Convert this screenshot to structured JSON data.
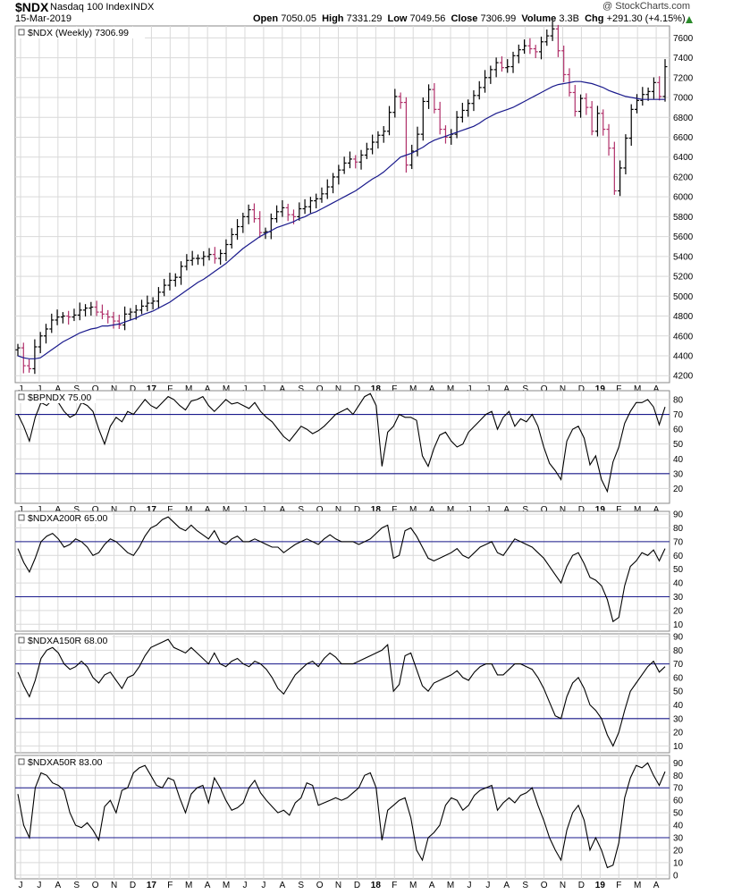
{
  "header": {
    "symbol": "$NDX",
    "name": "Nasdaq 100 Index",
    "exchange": "INDX",
    "date": "15-Mar-2019",
    "copyright": "@ StockCharts.com",
    "open_label": "Open",
    "open": "7050.05",
    "high_label": "High",
    "high": "7331.29",
    "low_label": "Low",
    "low": "7049.56",
    "close_label": "Close",
    "close": "7306.99",
    "volume_label": "Volume",
    "volume": "3.3B",
    "chg_label": "Chg",
    "chg": "+291.30 (+4.15%)"
  },
  "x_axis_labels": [
    {
      "label": "J",
      "bold": false
    },
    {
      "label": "J",
      "bold": false
    },
    {
      "label": "A",
      "bold": false
    },
    {
      "label": "S",
      "bold": false
    },
    {
      "label": "O",
      "bold": false
    },
    {
      "label": "N",
      "bold": false
    },
    {
      "label": "D",
      "bold": false
    },
    {
      "label": "17",
      "bold": true
    },
    {
      "label": "F",
      "bold": false
    },
    {
      "label": "M",
      "bold": false
    },
    {
      "label": "A",
      "bold": false
    },
    {
      "label": "M",
      "bold": false
    },
    {
      "label": "J",
      "bold": false
    },
    {
      "label": "J",
      "bold": false
    },
    {
      "label": "A",
      "bold": false
    },
    {
      "label": "S",
      "bold": false
    },
    {
      "label": "O",
      "bold": false
    },
    {
      "label": "N",
      "bold": false
    },
    {
      "label": "D",
      "bold": false
    },
    {
      "label": "18",
      "bold": true
    },
    {
      "label": "F",
      "bold": false
    },
    {
      "label": "M",
      "bold": false
    },
    {
      "label": "A",
      "bold": false
    },
    {
      "label": "M",
      "bold": false
    },
    {
      "label": "J",
      "bold": false
    },
    {
      "label": "J",
      "bold": false
    },
    {
      "label": "A",
      "bold": false
    },
    {
      "label": "S",
      "bold": false
    },
    {
      "label": "O",
      "bold": false
    },
    {
      "label": "N",
      "bold": false
    },
    {
      "label": "D",
      "bold": false
    },
    {
      "label": "19",
      "bold": true
    },
    {
      "label": "F",
      "bold": false
    },
    {
      "label": "M",
      "bold": false
    },
    {
      "label": "A",
      "bold": false
    }
  ],
  "colors": {
    "price": "#000000",
    "ma": "#1a1a8c",
    "down_bar": "#b0306a",
    "ref_line": "#1a1a8c",
    "grid": "#d9d9d9"
  },
  "chart_data": [
    {
      "type": "ohlc",
      "label": "$NDX (Weekly) 7306.99",
      "yticks": [
        4200,
        4400,
        4600,
        4800,
        5000,
        5200,
        5400,
        5600,
        5800,
        6000,
        6200,
        6400,
        6600,
        6800,
        7000,
        7200,
        7400,
        7600
      ],
      "ylim": [
        4130,
        7720
      ],
      "series": [
        {
          "name": "Close",
          "values": [
            4480,
            4300,
            4270,
            4490,
            4600,
            4670,
            4760,
            4790,
            4800,
            4790,
            4810,
            4860,
            4880,
            4890,
            4840,
            4820,
            4790,
            4750,
            4710,
            4820,
            4840,
            4860,
            4900,
            4930,
            4950,
            5040,
            5110,
            5160,
            5190,
            5300,
            5360,
            5380,
            5380,
            5400,
            5420,
            5380,
            5430,
            5520,
            5620,
            5700,
            5800,
            5870,
            5780,
            5640,
            5650,
            5780,
            5850,
            5890,
            5820,
            5800,
            5880,
            5900,
            5960,
            5980,
            6030,
            6100,
            6200,
            6270,
            6340,
            6380,
            6350,
            6420,
            6480,
            6550,
            6620,
            6660,
            6850,
            7010,
            6950,
            6320,
            6460,
            6630,
            6960,
            7080,
            6880,
            6680,
            6600,
            6630,
            6800,
            6870,
            6940,
            7020,
            7100,
            7200,
            7280,
            7350,
            7300,
            7310,
            7420,
            7480,
            7520,
            7490,
            7460,
            7560,
            7620,
            7690,
            7470,
            7230,
            7050,
            6860,
            6990,
            6900,
            6660,
            6840,
            6680,
            6490,
            6060,
            6290,
            6590,
            6880,
            6970,
            7030,
            7060,
            7150,
            7010,
            7310
          ]
        },
        {
          "name": "30-week MA",
          "values": [
            4400,
            4380,
            4370,
            4370,
            4380,
            4420,
            4460,
            4500,
            4540,
            4570,
            4600,
            4630,
            4650,
            4670,
            4680,
            4700,
            4700,
            4710,
            4720,
            4740,
            4760,
            4780,
            4810,
            4830,
            4850,
            4880,
            4910,
            4940,
            4980,
            5020,
            5060,
            5100,
            5140,
            5170,
            5210,
            5250,
            5290,
            5330,
            5380,
            5430,
            5480,
            5520,
            5560,
            5600,
            5630,
            5660,
            5690,
            5710,
            5730,
            5750,
            5780,
            5800,
            5830,
            5850,
            5880,
            5910,
            5940,
            5970,
            6000,
            6030,
            6060,
            6100,
            6140,
            6180,
            6210,
            6250,
            6300,
            6350,
            6400,
            6420,
            6440,
            6470,
            6500,
            6540,
            6570,
            6590,
            6610,
            6630,
            6650,
            6670,
            6690,
            6710,
            6740,
            6780,
            6810,
            6840,
            6860,
            6880,
            6900,
            6930,
            6960,
            6990,
            7020,
            7050,
            7080,
            7110,
            7130,
            7140,
            7150,
            7160,
            7160,
            7150,
            7140,
            7120,
            7100,
            7070,
            7050,
            7030,
            7010,
            7000,
            6990,
            6980,
            6980,
            6980,
            6980,
            6980
          ]
        }
      ]
    },
    {
      "type": "line",
      "label": "$BPNDX 75.00",
      "yticks": [
        20,
        30,
        40,
        50,
        60,
        70,
        80
      ],
      "ylim": [
        10,
        86
      ],
      "ref_lines": [
        70,
        30
      ],
      "series": [
        {
          "name": "$BPNDX",
          "values": [
            70,
            62,
            52,
            68,
            78,
            76,
            80,
            78,
            72,
            68,
            70,
            78,
            76,
            72,
            60,
            50,
            62,
            68,
            65,
            72,
            70,
            75,
            80,
            76,
            74,
            78,
            82,
            80,
            76,
            73,
            79,
            80,
            82,
            76,
            72,
            76,
            80,
            77,
            78,
            76,
            74,
            78,
            72,
            68,
            65,
            60,
            55,
            52,
            57,
            62,
            60,
            57,
            59,
            62,
            66,
            70,
            72,
            74,
            70,
            76,
            82,
            84,
            76,
            35,
            58,
            62,
            70,
            68,
            68,
            66,
            42,
            35,
            47,
            56,
            58,
            52,
            48,
            50,
            58,
            62,
            66,
            70,
            72,
            60,
            68,
            72,
            62,
            67,
            65,
            70,
            62,
            48,
            37,
            32,
            26,
            52,
            60,
            62,
            54,
            36,
            42,
            26,
            18,
            38,
            48,
            64,
            72,
            78,
            78,
            80,
            75,
            63,
            75
          ]
        }
      ]
    },
    {
      "type": "line",
      "label": "$NDXA200R 65.00",
      "yticks": [
        10,
        20,
        30,
        40,
        50,
        60,
        70,
        80,
        90
      ],
      "ylim": [
        5,
        92
      ],
      "ref_lines": [
        70,
        30
      ],
      "series": [
        {
          "name": "$NDXA200R",
          "values": [
            65,
            55,
            48,
            58,
            70,
            74,
            76,
            72,
            66,
            68,
            72,
            70,
            66,
            60,
            62,
            68,
            72,
            70,
            66,
            62,
            60,
            66,
            74,
            80,
            82,
            86,
            88,
            84,
            80,
            78,
            82,
            78,
            75,
            72,
            78,
            70,
            68,
            72,
            74,
            70,
            70,
            72,
            70,
            68,
            66,
            66,
            62,
            65,
            68,
            70,
            72,
            70,
            68,
            72,
            75,
            72,
            70,
            70,
            70,
            68,
            70,
            72,
            76,
            80,
            82,
            58,
            60,
            78,
            80,
            74,
            66,
            58,
            56,
            58,
            60,
            62,
            65,
            60,
            58,
            62,
            66,
            68,
            70,
            62,
            60,
            66,
            72,
            70,
            68,
            66,
            62,
            58,
            52,
            46,
            40,
            52,
            60,
            62,
            54,
            44,
            42,
            38,
            28,
            12,
            15,
            38,
            52,
            56,
            62,
            60,
            64,
            56,
            65
          ]
        }
      ]
    },
    {
      "type": "line",
      "label": "$NDXA150R 68.00",
      "yticks": [
        10,
        20,
        30,
        40,
        50,
        60,
        70,
        80,
        90
      ],
      "ylim": [
        5,
        92
      ],
      "ref_lines": [
        70,
        30
      ],
      "series": [
        {
          "name": "$NDXA150R",
          "values": [
            64,
            54,
            46,
            58,
            74,
            80,
            82,
            78,
            70,
            66,
            68,
            72,
            68,
            60,
            56,
            62,
            64,
            58,
            52,
            60,
            62,
            68,
            76,
            82,
            84,
            86,
            88,
            82,
            80,
            78,
            82,
            78,
            74,
            70,
            78,
            70,
            68,
            72,
            74,
            70,
            68,
            72,
            70,
            66,
            60,
            52,
            48,
            55,
            62,
            66,
            70,
            72,
            68,
            74,
            78,
            75,
            70,
            70,
            70,
            72,
            74,
            76,
            78,
            80,
            84,
            50,
            55,
            76,
            78,
            66,
            54,
            50,
            56,
            58,
            60,
            62,
            65,
            60,
            58,
            64,
            68,
            70,
            70,
            62,
            62,
            66,
            70,
            70,
            68,
            66,
            60,
            52,
            42,
            32,
            30,
            46,
            56,
            60,
            52,
            40,
            36,
            30,
            18,
            10,
            20,
            36,
            50,
            56,
            62,
            68,
            72,
            64,
            68
          ]
        }
      ]
    },
    {
      "type": "line",
      "label": "$NDXA50R 83.00",
      "yticks": [
        0,
        10,
        20,
        30,
        40,
        50,
        60,
        70,
        80,
        90
      ],
      "ylim": [
        -3,
        96
      ],
      "ref_lines": [
        70,
        30
      ],
      "series": [
        {
          "name": "$NDXA50R",
          "values": [
            65,
            40,
            30,
            70,
            82,
            80,
            74,
            72,
            68,
            50,
            40,
            38,
            42,
            36,
            28,
            55,
            60,
            50,
            68,
            70,
            82,
            86,
            88,
            80,
            72,
            70,
            78,
            76,
            62,
            50,
            65,
            70,
            72,
            58,
            78,
            70,
            60,
            52,
            54,
            58,
            70,
            76,
            66,
            60,
            55,
            50,
            52,
            48,
            58,
            62,
            74,
            72,
            56,
            58,
            60,
            62,
            60,
            62,
            66,
            70,
            80,
            82,
            70,
            28,
            52,
            56,
            60,
            62,
            46,
            20,
            12,
            30,
            34,
            40,
            56,
            62,
            60,
            52,
            56,
            64,
            68,
            70,
            72,
            52,
            58,
            62,
            58,
            64,
            66,
            70,
            56,
            44,
            30,
            20,
            12,
            36,
            50,
            56,
            44,
            20,
            30,
            20,
            6,
            8,
            26,
            62,
            78,
            88,
            86,
            90,
            80,
            72,
            83
          ]
        }
      ]
    }
  ]
}
